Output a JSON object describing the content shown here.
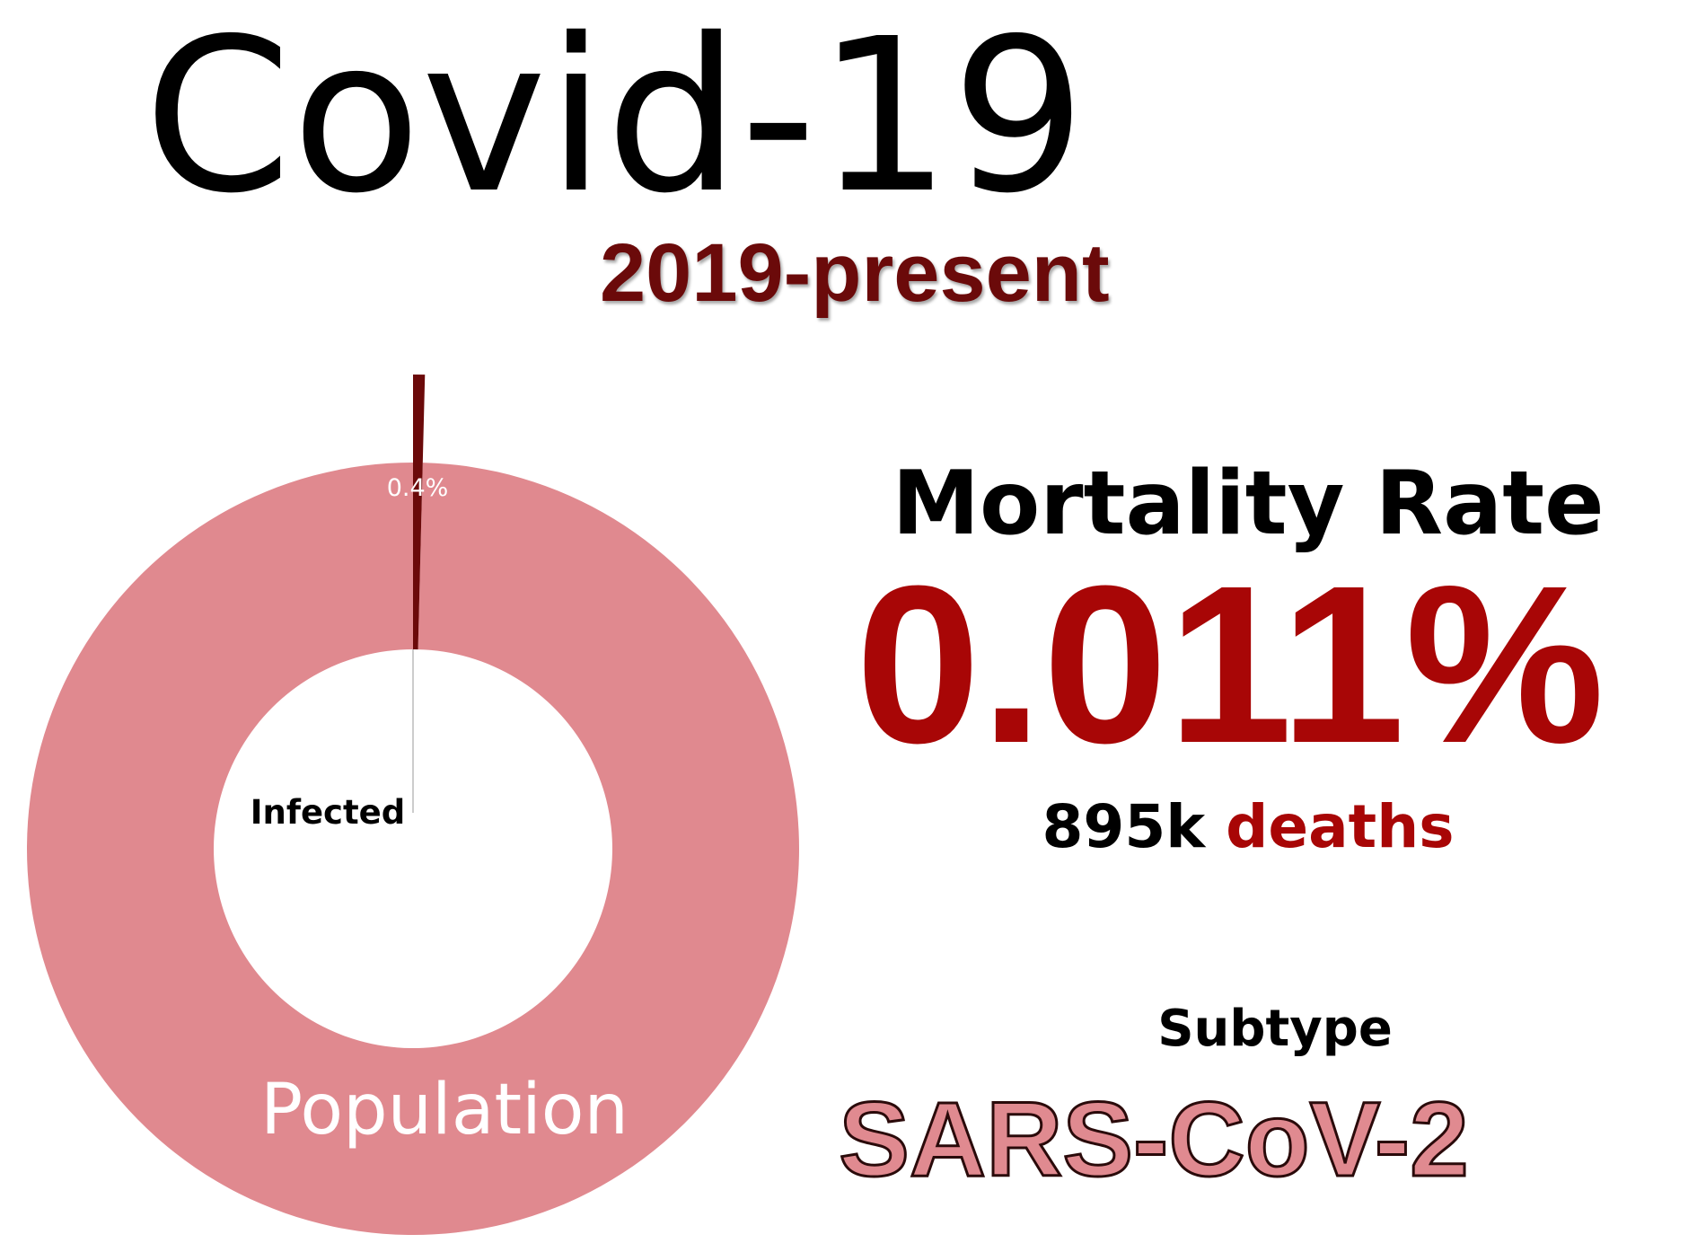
{
  "title": "Covid-19",
  "period": "2019-present",
  "mortality": {
    "label": "Mortality Rate",
    "value": "0.011%",
    "deaths_count": "895k",
    "deaths_word": "deaths"
  },
  "subtype": {
    "label": "Subtype",
    "value": "SARS-CoV-2"
  },
  "colors": {
    "population": "#e0898f",
    "infected": "#6b0a0a",
    "accent": "#a80606"
  },
  "chart_data": {
    "type": "pie",
    "style": "donut",
    "slices": [
      {
        "label": "Infected",
        "value": 0.4,
        "value_label": "0.4%",
        "exploded": true
      },
      {
        "label": "Population",
        "value": 99.6
      }
    ]
  }
}
